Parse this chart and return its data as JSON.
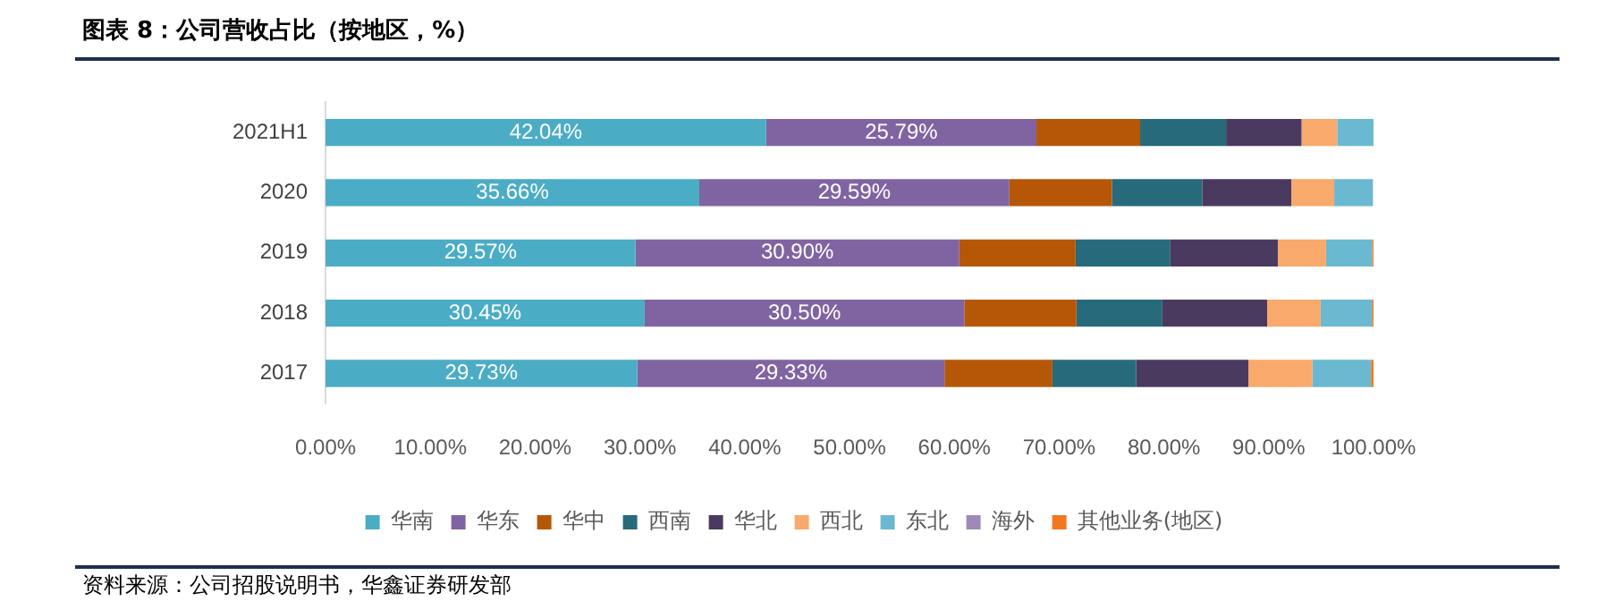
{
  "chart_data": {
    "type": "bar",
    "orientation": "horizontal",
    "stacked": true,
    "title": "图表 8：公司营收占比（按地区，%）",
    "annotations": [
      "资料来源：公司招股说明书，华鑫证券研发部"
    ],
    "categories": [
      "2021H1",
      "2020",
      "2019",
      "2018",
      "2017"
    ],
    "xlim": [
      0,
      100
    ],
    "xticks": [
      {
        "value": 0,
        "label": "0.00%"
      },
      {
        "value": 10,
        "label": "10.00%"
      },
      {
        "value": 20,
        "label": "20.00%"
      },
      {
        "value": 30,
        "label": "30.00%"
      },
      {
        "value": 40,
        "label": "40.00%"
      },
      {
        "value": 50,
        "label": "50.00%"
      },
      {
        "value": 60,
        "label": "60.00%"
      },
      {
        "value": 70,
        "label": "70.00%"
      },
      {
        "value": 80,
        "label": "80.00%"
      },
      {
        "value": 90,
        "label": "90.00%"
      },
      {
        "value": 100,
        "label": "100.00%"
      }
    ],
    "grid": false,
    "legend": "bottom",
    "series": [
      {
        "name": "华南",
        "color": "#4bacc6",
        "values": [
          42.04,
          35.66,
          29.57,
          30.45,
          29.73
        ],
        "value_labels": [
          "42.04%",
          "35.66%",
          "29.57%",
          "30.45%",
          "29.73%"
        ]
      },
      {
        "name": "华东",
        "color": "#8064a2",
        "values": [
          25.79,
          29.59,
          30.9,
          30.5,
          29.33
        ],
        "value_labels": [
          "25.79%",
          "29.59%",
          "30.90%",
          "30.50%",
          "29.33%"
        ]
      },
      {
        "name": "华中",
        "color": "#b65708",
        "values": [
          9.9,
          9.8,
          11.1,
          10.7,
          10.3
        ]
      },
      {
        "name": "西南",
        "color": "#276a7c",
        "values": [
          8.2,
          8.6,
          9.0,
          8.2,
          8.0
        ]
      },
      {
        "name": "华北",
        "color": "#4b3a60",
        "values": [
          7.2,
          8.5,
          10.3,
          10.0,
          10.7
        ]
      },
      {
        "name": "西北",
        "color": "#f8a96b",
        "values": [
          3.4,
          4.1,
          4.6,
          5.1,
          6.1
        ]
      },
      {
        "name": "东北",
        "color": "#6bb9d1",
        "values": [
          3.5,
          3.7,
          4.4,
          4.9,
          5.6
        ]
      },
      {
        "name": "海外",
        "color": "#9e8ab9",
        "values": [
          0,
          0,
          0,
          0,
          0
        ]
      },
      {
        "name": "其他业务(地区)",
        "color": "#f27820",
        "values": [
          0,
          0,
          0.2,
          0.2,
          0.3
        ]
      }
    ]
  }
}
